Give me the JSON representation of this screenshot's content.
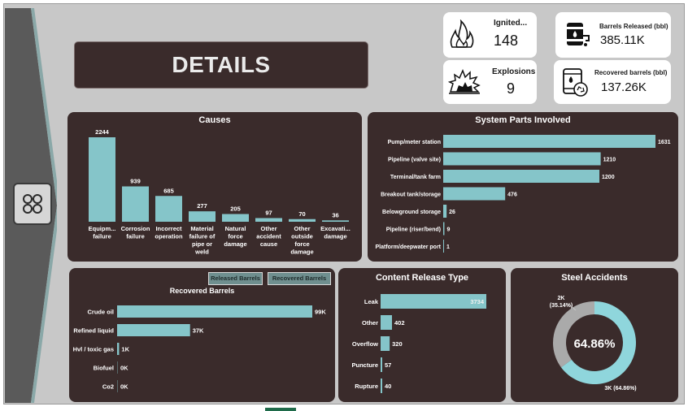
{
  "title": "DETAILS",
  "kpis": [
    {
      "label": "Ignited...",
      "value": "148",
      "icon": "fire-icon"
    },
    {
      "label": "Explosions",
      "value": "9",
      "icon": "explosion-icon"
    },
    {
      "label": "Barrels Released (bbl)",
      "value": "385.11K",
      "icon": "oil-barrel-icon"
    },
    {
      "label": "Recovered barrels (bbl)",
      "value": "137.26K",
      "icon": "recycle-barrel-icon"
    }
  ],
  "buttons": {
    "released": "Released Barrels",
    "recovered": "Recovered Barrels"
  },
  "colors": {
    "bar": "#85c5c9",
    "panel": "#3a2b2b",
    "donut_grey": "#aaaaaa",
    "donut_teal": "#8fd6dc"
  },
  "chart_data": [
    {
      "type": "bar",
      "title": "Causes",
      "categories": [
        "Equipm... failure",
        "Corrosion failure",
        "Incorrect operation",
        "Material failure of pipe or weld",
        "Natural force damage",
        "Other accident cause",
        "Other outside force damage",
        "Excavati... damage"
      ],
      "cat_lines": [
        [
          "Equipm...",
          "failure"
        ],
        [
          "Corrosion",
          "failure"
        ],
        [
          "Incorrect",
          "operation"
        ],
        [
          "Material",
          "failure of",
          "pipe or",
          "weld"
        ],
        [
          "Natural",
          "force",
          "damage"
        ],
        [
          "Other",
          "accident",
          "cause"
        ],
        [
          "Other",
          "outside",
          "force",
          "damage"
        ],
        [
          "Excavati...",
          "damage"
        ]
      ],
      "values": [
        2244,
        939,
        685,
        277,
        205,
        97,
        70,
        36
      ],
      "labels": [
        "2244",
        "939",
        "685",
        "277",
        "205",
        "97",
        "70",
        "36"
      ]
    },
    {
      "type": "bar",
      "orientation": "horizontal",
      "title": "System Parts Involved",
      "categories": [
        "Pump/meter station",
        "Pipeline (valve site)",
        "Terminal/tank farm",
        "Breakout tank/storage",
        "Belowground storage",
        "Pipeline (riser/bend)",
        "Platform/deepwater port"
      ],
      "values": [
        1631,
        1210,
        1200,
        476,
        26,
        9,
        1
      ],
      "labels": [
        "1631",
        "1210",
        "1200",
        "476",
        "26",
        "9",
        "1"
      ]
    },
    {
      "type": "bar",
      "orientation": "horizontal",
      "title": "Recovered Barrels",
      "categories": [
        "Crude oil",
        "Refined liquid",
        "Hvl / toxic gas",
        "Biofuel",
        "Co2"
      ],
      "values": [
        99000,
        37000,
        1000,
        0,
        0
      ],
      "labels": [
        "99K",
        "37K",
        "1K",
        "0K",
        "0K"
      ]
    },
    {
      "type": "bar",
      "orientation": "horizontal",
      "title": "Content Release Type",
      "categories": [
        "Leak",
        "Other",
        "Overflow",
        "Puncture",
        "Rupture"
      ],
      "values": [
        3734,
        402,
        320,
        57,
        40
      ],
      "labels": [
        "3734",
        "402",
        "320",
        "57",
        "40"
      ]
    },
    {
      "type": "pie",
      "title": "Steel Accidents",
      "values": [
        35.14,
        64.86
      ],
      "labels": [
        "2K (35.14%)",
        "3K (64.86%)"
      ],
      "label_lines": [
        [
          "2K",
          "(35.14%)"
        ],
        [
          "3K (64.86%)"
        ]
      ],
      "center_label": "64.86%"
    }
  ]
}
